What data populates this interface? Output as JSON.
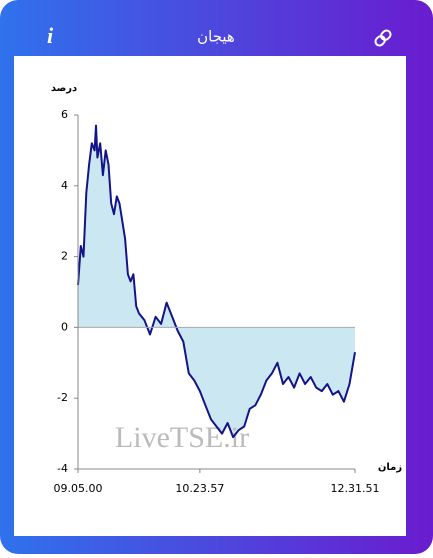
{
  "header": {
    "title": "هیجان",
    "info": "i"
  },
  "chart_data": {
    "type": "area",
    "y_label": "درصد",
    "x_label": "زمان",
    "watermark": "LiveTSE.ir",
    "x": [
      0,
      1,
      2,
      3,
      4,
      5,
      6,
      6.5,
      7,
      8,
      9,
      10,
      11,
      12,
      13,
      14,
      15,
      16,
      17,
      18,
      19,
      20,
      21,
      22,
      24,
      26,
      28,
      30,
      32,
      34,
      36,
      38,
      40,
      42,
      44,
      46,
      48,
      50,
      52,
      54,
      56,
      58,
      60,
      62,
      64,
      66,
      68,
      70,
      72,
      74,
      76,
      78,
      80,
      82,
      84,
      86,
      88,
      90,
      92,
      94,
      96,
      98,
      100
    ],
    "series": [
      {
        "name": "هیجان",
        "color": "#14148a",
        "fill": "#cbe7f1",
        "values": [
          1.2,
          2.3,
          2.0,
          3.8,
          4.6,
          5.2,
          5.0,
          5.7,
          4.8,
          5.2,
          4.3,
          5.0,
          4.6,
          3.5,
          3.2,
          3.7,
          3.5,
          3.0,
          2.5,
          1.5,
          1.3,
          1.5,
          0.6,
          0.4,
          0.2,
          -0.2,
          0.3,
          0.1,
          0.7,
          0.3,
          -0.1,
          -0.4,
          -1.3,
          -1.5,
          -1.8,
          -2.2,
          -2.6,
          -2.8,
          -3.0,
          -2.7,
          -3.1,
          -2.9,
          -2.8,
          -2.3,
          -2.2,
          -1.9,
          -1.5,
          -1.3,
          -1.0,
          -1.6,
          -1.4,
          -1.7,
          -1.3,
          -1.6,
          -1.4,
          -1.7,
          -1.8,
          -1.6,
          -1.9,
          -1.8,
          -2.1,
          -1.6,
          -0.7
        ]
      }
    ],
    "xlim": [
      0,
      100
    ],
    "xticks": [
      {
        "value": 0,
        "label": "09.05.00"
      },
      {
        "value": 44,
        "label": "10.23.57"
      },
      {
        "value": 100,
        "label": "12.31.51"
      }
    ],
    "ylim": [
      -4,
      6
    ],
    "yticks": [
      6,
      4,
      2,
      0,
      -2,
      -4
    ],
    "zero_line": true
  }
}
